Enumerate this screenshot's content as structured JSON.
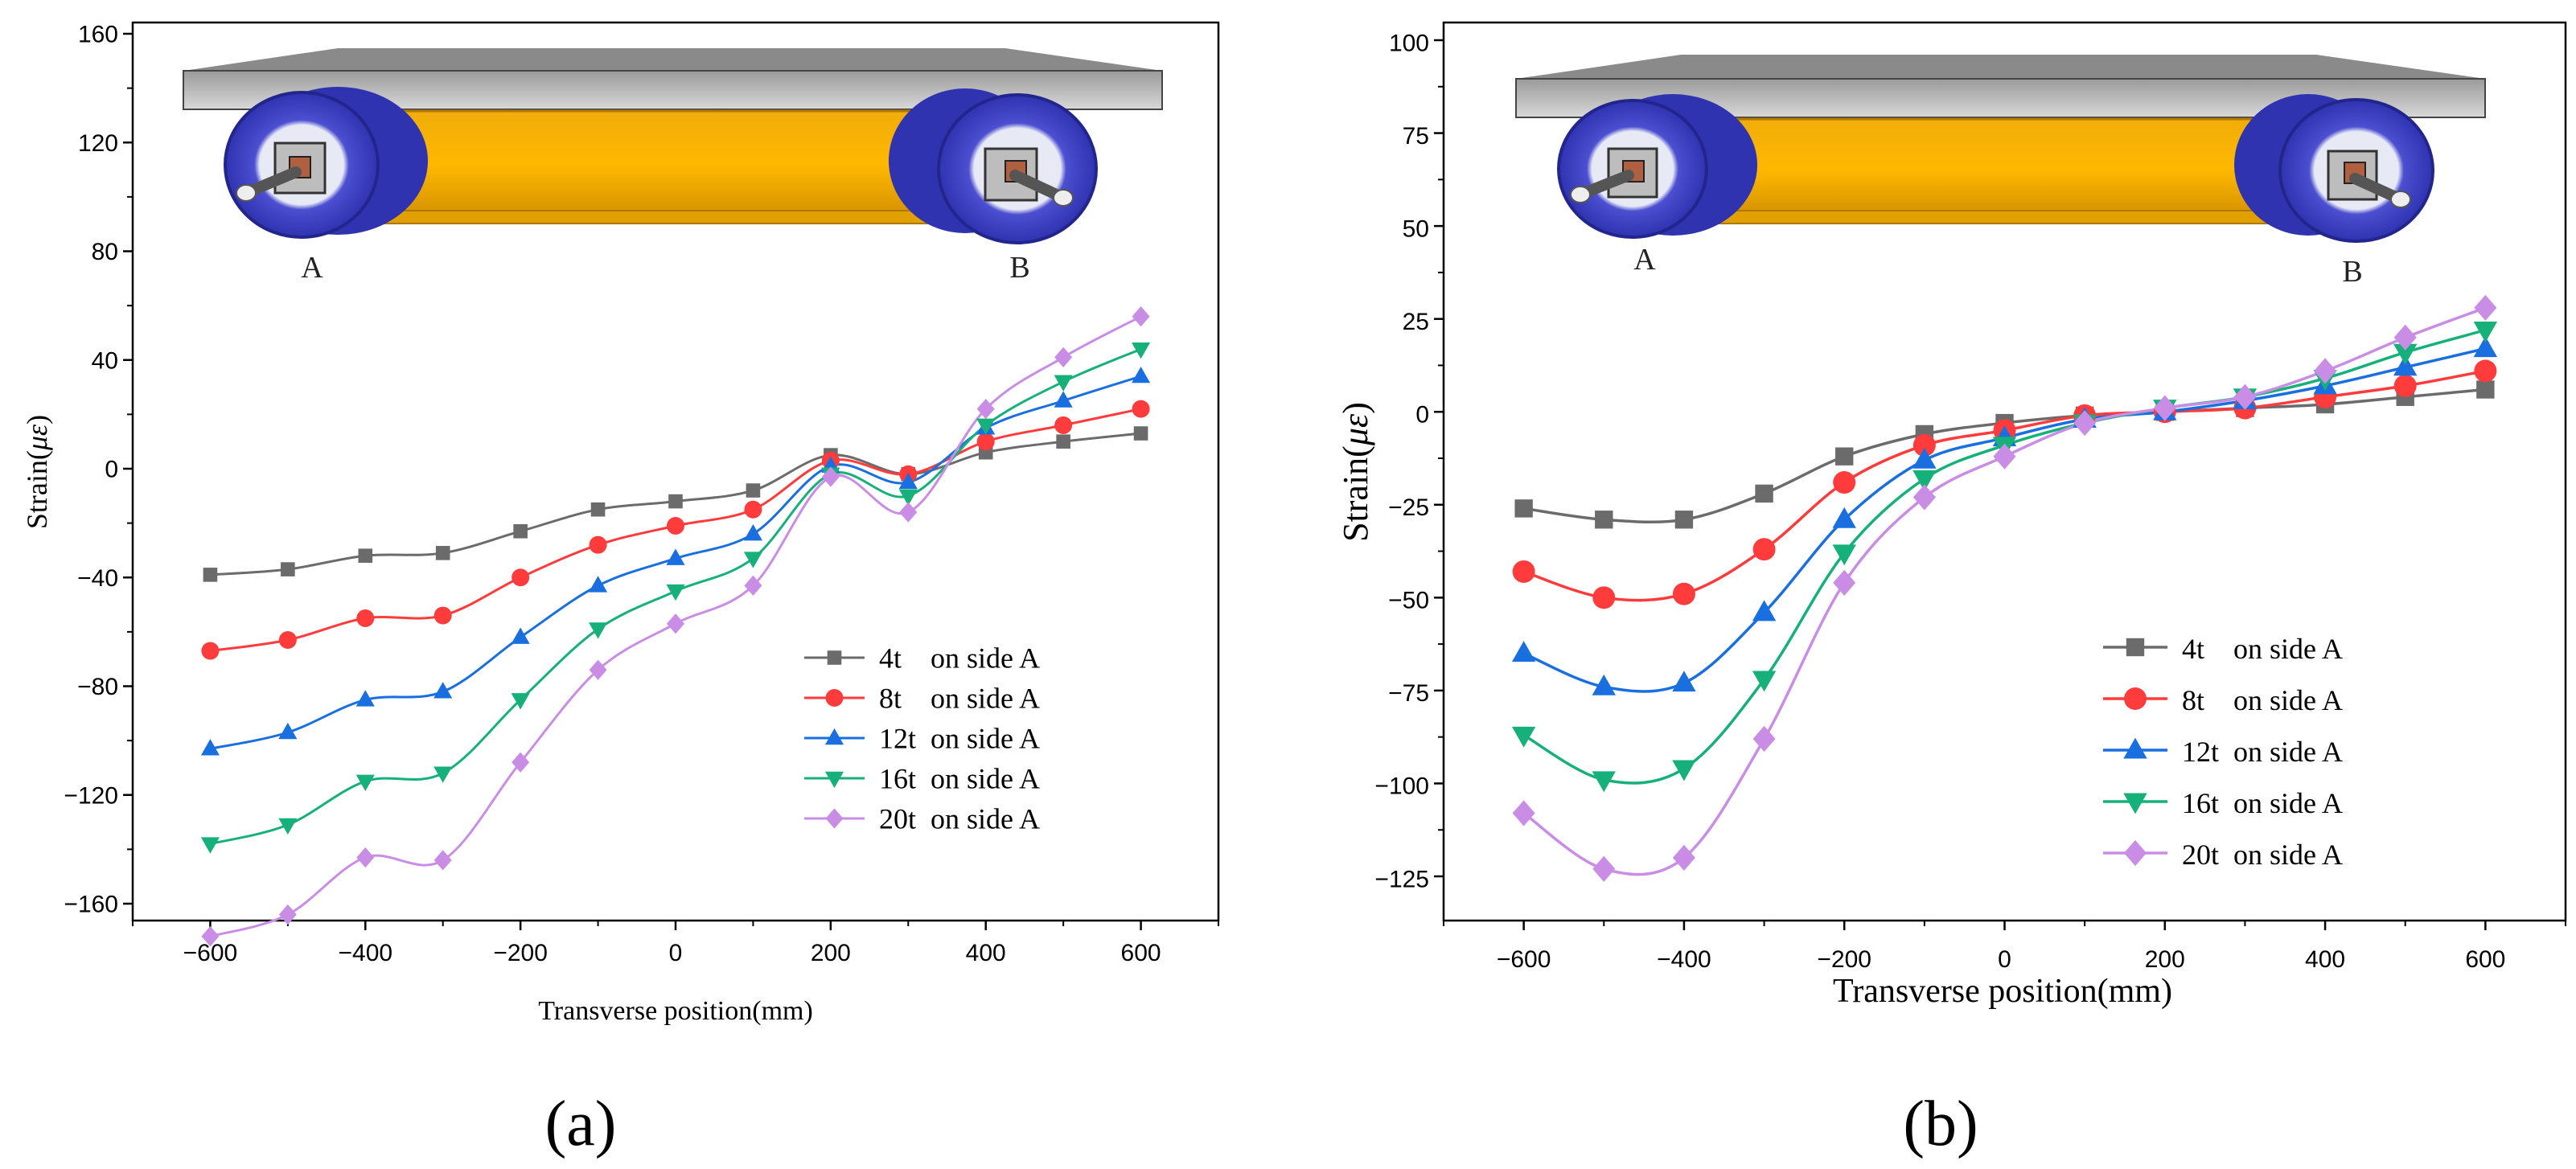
{
  "chart_data": [
    {
      "type": "line",
      "panel": "a",
      "caption": "(a)",
      "xlabel": "Transverse position(mm)",
      "ylabel_prefix": "Strain(",
      "ylabel_unit": "με",
      "ylabel_suffix": ")",
      "xlim": [
        -700,
        700
      ],
      "ylim": [
        -180,
        160
      ],
      "xticks": [
        -600,
        -400,
        -200,
        0,
        200,
        400,
        600
      ],
      "xtick_labels": [
        "−600",
        "−400",
        "−200",
        "0",
        "200",
        "400",
        "600"
      ],
      "yticks": [
        -160,
        -120,
        -80,
        -40,
        0,
        40,
        80,
        120,
        160
      ],
      "ytick_labels": [
        "−160",
        "−120",
        "−80",
        "−40",
        "0",
        "40",
        "80",
        "120",
        "160"
      ],
      "x": [
        -600,
        -500,
        -400,
        -300,
        -200,
        -100,
        0,
        100,
        200,
        300,
        400,
        500,
        600
      ],
      "legend_position": "bottom-right",
      "illustration_labels": [
        "A",
        "B"
      ],
      "series": [
        {
          "name": "4t    on side A",
          "color": "#6b6b6b",
          "marker": "square",
          "values": [
            -39,
            -37,
            -32,
            -31,
            -23,
            -15,
            -12,
            -8,
            5,
            -2,
            6,
            10,
            13
          ]
        },
        {
          "name": "8t    on side A",
          "color": "#ff3b3b",
          "marker": "circle",
          "values": [
            -67,
            -63,
            -55,
            -54,
            -40,
            -28,
            -21,
            -15,
            3,
            -2,
            10,
            16,
            22
          ]
        },
        {
          "name": "12t  on side A",
          "color": "#1a6fe0",
          "marker": "triangle-up",
          "values": [
            -103,
            -97,
            -85,
            -82,
            -62,
            -43,
            -33,
            -24,
            1,
            -5,
            15,
            25,
            34
          ]
        },
        {
          "name": "16t  on side A",
          "color": "#16b07a",
          "marker": "triangle-down",
          "values": [
            -138,
            -131,
            -115,
            -112,
            -85,
            -59,
            -45,
            -33,
            -2,
            -10,
            16,
            32,
            44
          ]
        },
        {
          "name": "20t  on side A",
          "color": "#c98de6",
          "marker": "diamond",
          "values": [
            -172,
            -164,
            -143,
            -144,
            -108,
            -74,
            -57,
            -43,
            -3,
            -16,
            22,
            41,
            56
          ]
        }
      ]
    },
    {
      "type": "line",
      "panel": "b",
      "caption": "(b)",
      "xlabel": "Transverse position(mm)",
      "ylabel_prefix": "Strain(",
      "ylabel_unit": "με",
      "ylabel_suffix": ")",
      "xlim": [
        -700,
        700
      ],
      "ylim": [
        -135,
        100
      ],
      "xticks": [
        -600,
        -400,
        -200,
        0,
        200,
        400,
        600
      ],
      "xtick_labels": [
        "−600",
        "−400",
        "−200",
        "0",
        "200",
        "400",
        "600"
      ],
      "yticks": [
        -125,
        -100,
        -75,
        -50,
        -25,
        0,
        25,
        50,
        75,
        100
      ],
      "ytick_labels": [
        "−125",
        "−100",
        "−75",
        "−50",
        "−25",
        "0",
        "25",
        "50",
        "75",
        "100"
      ],
      "x": [
        -600,
        -500,
        -400,
        -300,
        -200,
        -100,
        0,
        100,
        200,
        300,
        400,
        500,
        600
      ],
      "legend_position": "bottom-right",
      "illustration_labels": [
        "A",
        "B"
      ],
      "series": [
        {
          "name": "4t    on side A",
          "color": "#6b6b6b",
          "marker": "square",
          "values": [
            -26,
            -29,
            -29,
            -22,
            -12,
            -6,
            -3,
            -1,
            0,
            1,
            2,
            4,
            6
          ]
        },
        {
          "name": "8t    on side A",
          "color": "#ff3b3b",
          "marker": "circle",
          "values": [
            -43,
            -50,
            -49,
            -37,
            -19,
            -9,
            -5,
            -1,
            0,
            1,
            4,
            7,
            11
          ]
        },
        {
          "name": "12t  on side A",
          "color": "#1a6fe0",
          "marker": "triangle-up",
          "values": [
            -65,
            -74,
            -73,
            -54,
            -29,
            -13,
            -7,
            -2,
            0,
            3,
            7,
            12,
            17
          ]
        },
        {
          "name": "16t  on side A",
          "color": "#16b07a",
          "marker": "triangle-down",
          "values": [
            -87,
            -99,
            -96,
            -72,
            -38,
            -18,
            -9,
            -3,
            1,
            4,
            9,
            16,
            22
          ]
        },
        {
          "name": "20t  on side A",
          "color": "#c98de6",
          "marker": "diamond",
          "values": [
            -108,
            -123,
            -120,
            -88,
            -46,
            -23,
            -12,
            -3,
            1,
            4,
            11,
            20,
            28
          ]
        }
      ]
    }
  ]
}
